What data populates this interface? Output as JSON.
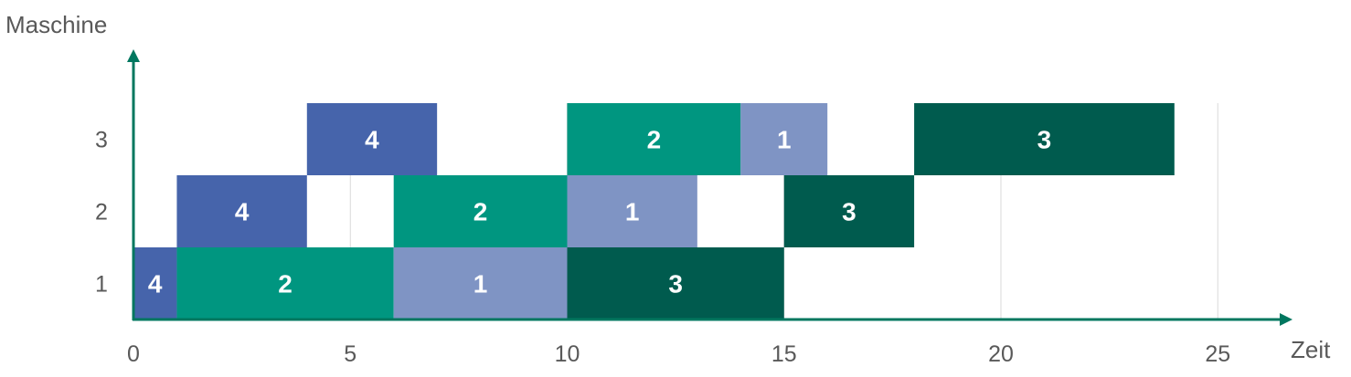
{
  "chart_data": {
    "type": "bar",
    "orientation": "horizontal-gantt",
    "xlabel": "Zeit",
    "ylabel": "Maschine",
    "xlim": [
      0,
      27.8
    ],
    "xticks": [
      0,
      5,
      10,
      15,
      20,
      25
    ],
    "machines": [
      "1",
      "2",
      "3"
    ],
    "grid": "vertical gridlines",
    "colors": {
      "1": "#7f94c4",
      "2": "#009680",
      "3": "#005b4e",
      "4": "#4664ab",
      "axis": "#00775f"
    },
    "jobs": [
      {
        "machine": "1",
        "job": "4",
        "start": 0,
        "end": 1
      },
      {
        "machine": "1",
        "job": "2",
        "start": 1,
        "end": 6
      },
      {
        "machine": "1",
        "job": "1",
        "start": 6,
        "end": 10
      },
      {
        "machine": "1",
        "job": "3",
        "start": 10,
        "end": 15
      },
      {
        "machine": "2",
        "job": "4",
        "start": 1,
        "end": 4
      },
      {
        "machine": "2",
        "job": "2",
        "start": 6,
        "end": 10
      },
      {
        "machine": "2",
        "job": "1",
        "start": 10,
        "end": 13
      },
      {
        "machine": "2",
        "job": "3",
        "start": 15,
        "end": 18
      },
      {
        "machine": "3",
        "job": "4",
        "start": 4,
        "end": 7
      },
      {
        "machine": "3",
        "job": "2",
        "start": 10,
        "end": 14
      },
      {
        "machine": "3",
        "job": "1",
        "start": 14,
        "end": 16
      },
      {
        "machine": "3",
        "job": "3",
        "start": 18,
        "end": 24
      }
    ]
  }
}
